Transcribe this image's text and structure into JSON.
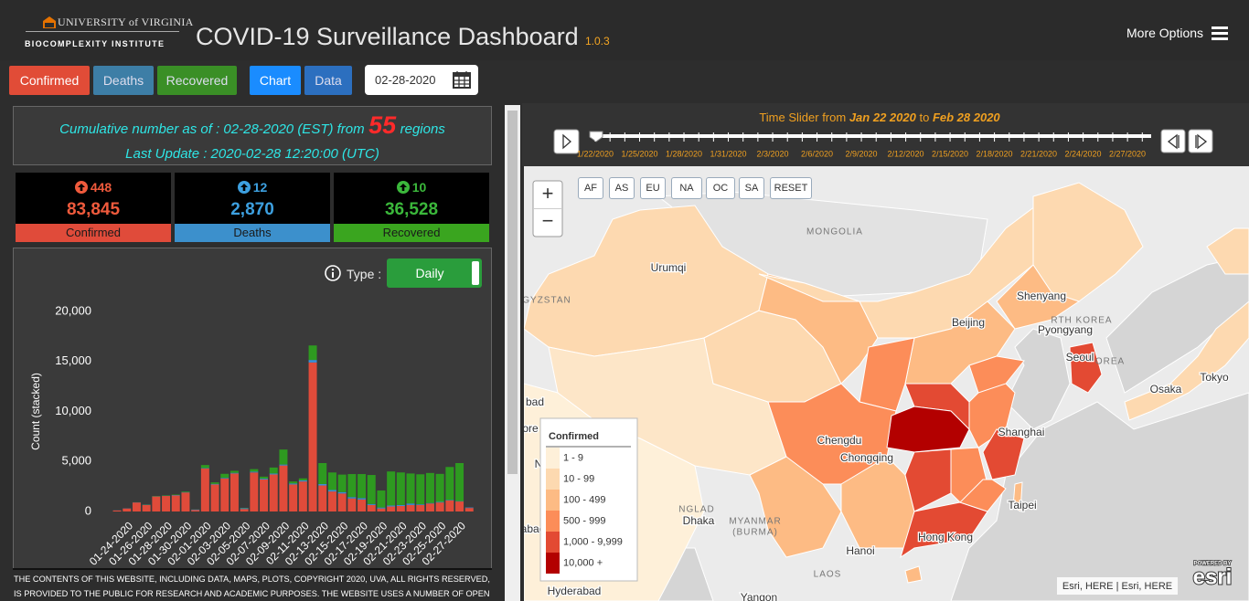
{
  "header": {
    "logo_line1": "UNIVERSITY of VIRGINIA",
    "logo_line2": "BIOCOMPLEXITY INSTITUTE",
    "title": "COVID-19 Surveillance Dashboard",
    "version": "1.0.3",
    "menu": "More Options"
  },
  "toolbar": {
    "buttons": [
      "Confirmed",
      "Deaths",
      "Recovered"
    ],
    "views": [
      "Chart",
      "Data"
    ],
    "date": "02-28-2020"
  },
  "summary": {
    "line1": "Cumulative number as of : 02-28-2020 (EST) from",
    "regions": "55",
    "line1_end": "regions",
    "line2": "Last Update : 2020-02-28 12:20:00 (UTC)"
  },
  "stats": [
    {
      "change": "448",
      "total": "83,845",
      "label": "Confirmed"
    },
    {
      "change": "12",
      "total": "2,870",
      "label": "Deaths"
    },
    {
      "change": "10",
      "total": "36,528",
      "label": "Recovered"
    }
  ],
  "chart_controls": {
    "type_label": "Type :",
    "type_value": "Daily"
  },
  "chart_data": {
    "type": "bar",
    "stacked": true,
    "y_label": "Count (stacked)",
    "categories": [
      null,
      null,
      "01-24-2020",
      null,
      "01-26-2020",
      null,
      "01-28-2020",
      null,
      "01-30-2020",
      null,
      "02-01-2020",
      null,
      "02-03-2020",
      null,
      "02-05-2020",
      null,
      "02-07-2020",
      null,
      "02-09-2020",
      null,
      "02-11-2020",
      null,
      "02-13-2020",
      null,
      "02-15-2020",
      null,
      "02-17-2020",
      null,
      "02-19-2020",
      null,
      "02-21-2020",
      null,
      "02-23-2020",
      null,
      "02-25-2020",
      null,
      "02-27-2020",
      null
    ],
    "series": [
      {
        "color": "#e04b3a",
        "values": [
          0,
          100,
          300,
          900,
          650,
          1500,
          1550,
          1600,
          1900,
          150,
          4300,
          2700,
          3300,
          3800,
          250,
          3900,
          3200,
          3700,
          4600,
          2700,
          3000,
          14900,
          2600,
          2000,
          1800,
          1300,
          1200,
          650,
          300,
          500,
          550,
          650,
          650,
          800,
          900,
          1100,
          1000,
          350
        ]
      },
      {
        "color": "#3a8fd8",
        "values": [
          0,
          10,
          15,
          15,
          25,
          25,
          25,
          40,
          40,
          45,
          45,
          60,
          65,
          65,
          70,
          85,
          85,
          95,
          95,
          100,
          110,
          250,
          140,
          150,
          140,
          140,
          140,
          100,
          100,
          100,
          105,
          150,
          70,
          50,
          60,
          50,
          40,
          50
        ]
      },
      {
        "color": "#2e9a20",
        "values": [
          0,
          0,
          0,
          10,
          20,
          30,
          40,
          50,
          60,
          10,
          300,
          150,
          400,
          200,
          30,
          250,
          200,
          600,
          1500,
          200,
          200,
          1450,
          2100,
          1750,
          1750,
          2300,
          2400,
          2900,
          1700,
          3400,
          3250,
          3000,
          3000,
          3000,
          2800,
          3300,
          3800,
          0
        ]
      }
    ],
    "ylim": [
      0,
      20000
    ],
    "yticks": [
      0,
      {
        "value": 5000,
        "label": "5,000"
      },
      {
        "value": 10000,
        "label": "10,000"
      },
      {
        "value": 15000,
        "label": "15,000"
      },
      {
        "value": 20000,
        "label": "20,000"
      }
    ]
  },
  "footer": "THE CONTENTS OF THIS WEBSITE, INCLUDING DATA, MAPS, PLOTS, COPYRIGHT 2020, UVA, ALL RIGHTS RESERVED, IS PROVIDED TO THE PUBLIC FOR RESEARCH AND ACADEMIC PURPOSES. THE WEBSITE USES A NUMBER OF OPEN",
  "map": {
    "slider": {
      "prefix": "Time Slider from",
      "start": "Jan 22 2020",
      "middle": "to",
      "end": "Feb 28 2020",
      "labels": [
        "1/22/2020",
        "1/25/2020",
        "1/28/2020",
        "1/31/2020",
        "2/3/2020",
        "2/6/2020",
        "2/9/2020",
        "2/12/2020",
        "2/15/2020",
        "2/18/2020",
        "2/21/2020",
        "2/24/2020",
        "2/27/2020"
      ]
    },
    "regions": [
      "AF",
      "AS",
      "EU",
      "NA",
      "OC",
      "SA",
      "RESET"
    ],
    "zoom": [
      "+",
      "−"
    ],
    "legend": {
      "title": "Confirmed",
      "items": [
        {
          "label": "1 - 9",
          "color": "#fef0d9"
        },
        {
          "label": "10 - 99",
          "color": "#fdd9b0"
        },
        {
          "label": "100 - 499",
          "color": "#fdbb84"
        },
        {
          "label": "500 - 999",
          "color": "#fc8d59"
        },
        {
          "label": "1,000 - 9,999",
          "color": "#e34a33"
        },
        {
          "label": "10,000 +",
          "color": "#b30000"
        }
      ]
    },
    "places": [
      "MONGOLIA",
      "Urumqi",
      "GYZSTAN",
      "Shenyang",
      "Beijing",
      "RTH KOREA",
      "Pyongyang",
      "Seoul",
      "OREA",
      "Tokyo",
      "Osaka",
      "bad",
      "ore",
      "Shanghai",
      "Chengdu",
      "Chongqing",
      "New Delhi",
      "NGLAD",
      "Taipei",
      "Dhaka",
      "MYANMAR",
      "(BURMA)",
      "abad",
      "Hong Kong",
      "Hanoi",
      "LAOS",
      "Hyderabad",
      "Yangon"
    ],
    "attribution": "Esri, HERE | Esri, HERE",
    "powered": "POWERED BY",
    "brand": "esri"
  }
}
